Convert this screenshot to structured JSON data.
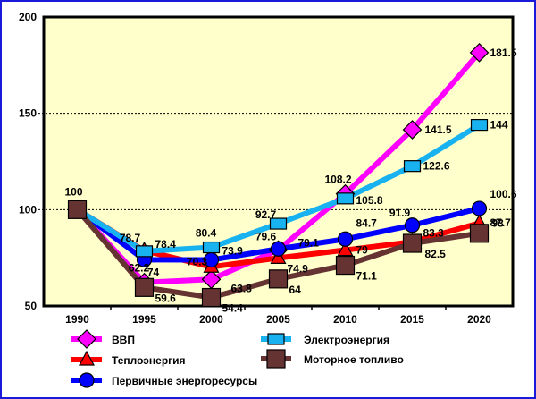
{
  "chart_data": {
    "type": "line",
    "title": "",
    "xlabel": "",
    "ylabel": "",
    "categories": [
      "1990",
      "1995",
      "2000",
      "2005",
      "2010",
      "2015",
      "2020"
    ],
    "ylim": [
      50,
      200
    ],
    "yticks": [
      "50",
      "100",
      "150",
      "200"
    ],
    "grid": "horizontal dashed at 100 and 150",
    "legend_position": "bottom",
    "series": [
      {
        "name": "ВВП",
        "color": "#ff00ff",
        "marker": "diamond",
        "values": [
          100,
          62.2,
          63.8,
          79.1,
          108.2,
          141.5,
          181.5
        ],
        "labels": [
          "",
          "62.2",
          "63.8",
          "79.1",
          "108.2",
          "141.5",
          "181.5"
        ]
      },
      {
        "name": "Теплоэнергия",
        "color": "#ff0000",
        "marker": "triangle",
        "values": [
          100,
          78.7,
          70.3,
          74.9,
          79,
          83.3,
          93
        ],
        "labels": [
          "",
          "78.7",
          "70.3",
          "74.9",
          "79",
          "83.3",
          "93"
        ]
      },
      {
        "name": "Первичные энергоресурсы",
        "color": "#0000ff",
        "marker": "circle",
        "values": [
          100,
          74,
          73.9,
          79.6,
          84.7,
          91.9,
          100.6
        ],
        "labels": [
          "",
          "74",
          "73.9",
          "79.6",
          "84.7",
          "91.9",
          "100.6"
        ]
      },
      {
        "name": "Электроэнергия",
        "color": "#19b2f0",
        "marker": "rect",
        "values": [
          100,
          78.4,
          80.4,
          92.7,
          105.8,
          122.6,
          144
        ],
        "labels": [
          "",
          "78.4",
          "80.4",
          "92.7",
          "105.8",
          "122.6",
          "144"
        ]
      },
      {
        "name": "Моторное топливо",
        "color": "#663333",
        "marker": "square",
        "values": [
          100,
          59.6,
          54.4,
          64,
          71.1,
          82.5,
          87.7
        ],
        "labels": [
          "100",
          "59.6",
          "54.4",
          "64",
          "71.1",
          "82.5",
          "87.7"
        ]
      }
    ]
  },
  "colors": {
    "plot_background": "#ffffcc",
    "frame_border": "#1a1ad8"
  }
}
